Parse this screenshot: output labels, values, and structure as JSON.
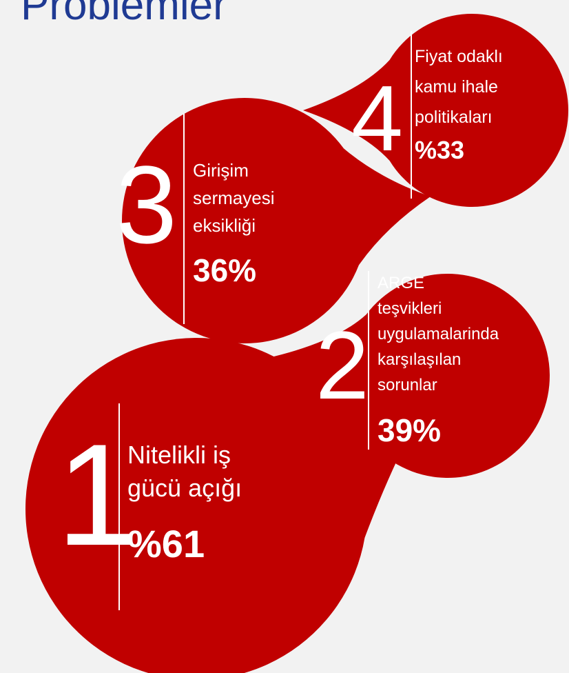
{
  "title": "Problemler",
  "items": [
    {
      "rank": 1,
      "lines": [
        "Nitelikli iş",
        "gücü açığı"
      ],
      "value": "%61"
    },
    {
      "rank": 2,
      "lines": [
        "ARGE",
        "teşvikleri",
        "uygulamalarinda",
        "karşılaşılan",
        "sorunlar"
      ],
      "value": "39%"
    },
    {
      "rank": 3,
      "lines": [
        "Girişim",
        "sermayesi",
        "eksikliği"
      ],
      "value": "36%"
    },
    {
      "rank": 4,
      "lines": [
        "Fiyat odaklı",
        "kamu ihale",
        "politikaları"
      ],
      "value": "%33"
    }
  ]
}
